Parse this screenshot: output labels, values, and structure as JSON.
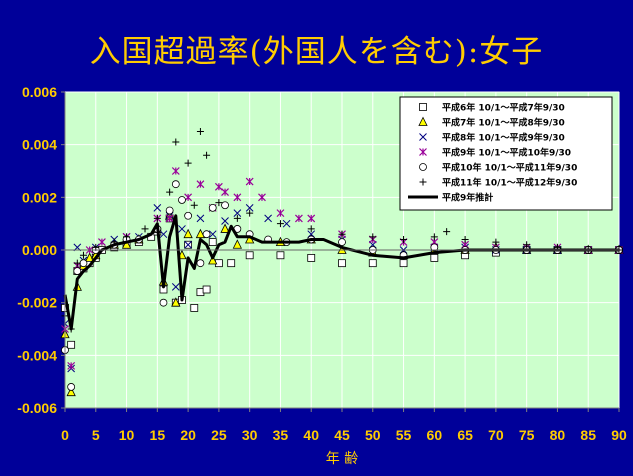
{
  "title": "入国超過率(外国人を含む):女子",
  "colors": {
    "background": "#000099",
    "plot_area": "#CCFFCC",
    "text": "#FFCC00"
  },
  "chart_data": {
    "type": "scatter",
    "xlabel": "年 齢",
    "ylabel": "",
    "xlim": [
      0,
      90
    ],
    "ylim": [
      -0.006,
      0.006
    ],
    "xticks": [
      "0",
      "5",
      "10",
      "15",
      "20",
      "25",
      "30",
      "35",
      "40",
      "45",
      "50",
      "55",
      "60",
      "65",
      "70",
      "75",
      "80",
      "85",
      "90"
    ],
    "yticks": [
      "-0.006",
      "-0.004",
      "-0.002",
      "0.000",
      "0.002",
      "0.004",
      "0.006"
    ],
    "grid": true,
    "legend_position": "top-right",
    "series": [
      {
        "name": "平成6年 10/1～平成7年9/30",
        "marker": "square",
        "x": [
          0,
          1,
          2,
          3,
          4,
          5,
          6,
          8,
          10,
          12,
          14,
          15,
          16,
          17,
          18,
          19,
          20,
          21,
          22,
          23,
          24,
          25,
          27,
          30,
          35,
          40,
          45,
          50,
          55,
          60,
          65,
          70,
          75,
          80,
          85,
          90
        ],
        "y": [
          -0.0022,
          -0.0036,
          -0.0008,
          -0.0007,
          -0.0005,
          -0.0003,
          0.0,
          0.0001,
          0.0002,
          0.0003,
          0.0005,
          0.0007,
          -0.0015,
          0.0012,
          -0.002,
          -0.0019,
          0.0002,
          -0.0022,
          -0.0016,
          -0.0015,
          0.0003,
          -0.0005,
          -0.0005,
          -0.0002,
          -0.0002,
          -0.0003,
          -0.0005,
          -0.0005,
          -0.0005,
          -0.0003,
          -0.0002,
          -0.0001,
          0.0,
          0.0,
          0.0,
          0.0
        ]
      },
      {
        "name": "平成7年 10/1～平成8年9/30",
        "marker": "triangle",
        "x": [
          0,
          1,
          2,
          3,
          4,
          5,
          8,
          10,
          12,
          15,
          16,
          17,
          18,
          19,
          20,
          22,
          24,
          26,
          28,
          30,
          35,
          40,
          45,
          50,
          55,
          60,
          65,
          70,
          75,
          80,
          85,
          90
        ],
        "y": [
          -0.0032,
          -0.0054,
          -0.0014,
          -0.0006,
          -0.0003,
          -0.0002,
          0.0002,
          0.0002,
          0.0004,
          0.0008,
          -0.0012,
          0.0013,
          -0.002,
          -0.0002,
          0.0006,
          0.0006,
          -0.0004,
          0.0008,
          0.0002,
          0.0004,
          0.0003,
          0.0004,
          0.0,
          -0.0001,
          -0.0002,
          0.0,
          0.0,
          0.0001,
          0.0,
          0.0,
          0.0,
          0.0
        ]
      },
      {
        "name": "平成8年 10/1～平成9年9/30",
        "marker": "x",
        "x": [
          0,
          1,
          2,
          3,
          5,
          8,
          10,
          12,
          15,
          16,
          17,
          18,
          19,
          20,
          22,
          24,
          26,
          28,
          30,
          33,
          36,
          40,
          45,
          50,
          55,
          60,
          65,
          70,
          75,
          80,
          85,
          90
        ],
        "y": [
          -0.0028,
          -0.0045,
          0.0001,
          -0.0004,
          0.0001,
          0.0004,
          0.0005,
          0.0005,
          0.0016,
          0.0006,
          0.0013,
          -0.0014,
          0.0008,
          0.0002,
          0.0012,
          0.0006,
          0.0011,
          0.0014,
          0.0016,
          0.0012,
          0.001,
          0.0006,
          0.0004,
          0.0002,
          0.0,
          0.0001,
          0.0001,
          0.0,
          0.0,
          0.0,
          0.0,
          0.0
        ]
      },
      {
        "name": "平成9年 10/1～平成10年9/30",
        "marker": "star",
        "x": [
          0,
          1,
          2,
          4,
          6,
          10,
          15,
          17,
          18,
          20,
          22,
          24,
          25,
          26,
          28,
          30,
          32,
          35,
          38,
          40,
          45,
          50,
          55,
          60,
          65,
          70,
          75,
          80,
          85,
          90
        ],
        "y": [
          -0.003,
          -0.0044,
          -0.0006,
          0.0,
          0.0003,
          0.0005,
          0.0012,
          0.0012,
          0.003,
          0.002,
          0.0025,
          0.0016,
          0.0024,
          0.0022,
          0.002,
          0.0026,
          0.002,
          0.0014,
          0.0012,
          0.0012,
          0.0006,
          0.0004,
          0.0003,
          0.0003,
          0.0002,
          0.0001,
          0.0001,
          0.0001,
          0.0,
          0.0
        ]
      },
      {
        "name": "平成10年 10/1～平成11年9/30",
        "marker": "circle",
        "x": [
          0,
          1,
          2,
          3,
          5,
          8,
          10,
          12,
          15,
          16,
          17,
          18,
          19,
          20,
          22,
          23,
          24,
          26,
          28,
          30,
          33,
          36,
          40,
          45,
          50,
          55,
          60,
          65,
          70,
          75,
          80,
          85,
          90
        ],
        "y": [
          -0.0038,
          -0.0052,
          -0.0008,
          -0.0005,
          0.0,
          0.0002,
          0.0004,
          0.0004,
          0.0008,
          -0.002,
          0.0015,
          0.0025,
          0.0019,
          0.0013,
          -0.0005,
          0.0006,
          0.0016,
          0.0017,
          0.0008,
          0.0006,
          0.0004,
          0.0003,
          0.0004,
          0.0003,
          0.0,
          -0.0002,
          0.0001,
          0.0,
          0.0,
          0.0,
          0.0,
          0.0,
          0.0
        ]
      },
      {
        "name": "平成11年 10/1～平成12年9/30",
        "marker": "plus",
        "x": [
          0,
          1,
          2,
          3,
          5,
          8,
          10,
          13,
          15,
          17,
          18,
          20,
          21,
          22,
          23,
          25,
          28,
          30,
          35,
          40,
          45,
          50,
          55,
          60,
          62,
          65,
          70,
          75,
          80,
          85,
          90
        ],
        "y": [
          -0.0025,
          -0.003,
          -0.0005,
          -0.0002,
          0.0001,
          0.0003,
          0.0005,
          0.0008,
          0.0012,
          0.0022,
          0.0041,
          0.0033,
          0.0017,
          0.0045,
          0.0036,
          0.0018,
          0.0012,
          0.0014,
          0.001,
          0.0008,
          0.0006,
          0.0005,
          0.0004,
          0.0005,
          0.0007,
          0.0004,
          0.0003,
          0.0002,
          0.0001,
          0.0,
          0.0
        ]
      },
      {
        "name": "平成9年推計",
        "marker": "line",
        "x": [
          0,
          1,
          2,
          3,
          4,
          5,
          6,
          8,
          10,
          12,
          14,
          15,
          16,
          17,
          18,
          19,
          20,
          21,
          22,
          23,
          24,
          25,
          26,
          27,
          28,
          30,
          32,
          35,
          38,
          40,
          42,
          45,
          50,
          55,
          60,
          65,
          70,
          75,
          80,
          85,
          90
        ],
        "y": [
          -0.0017,
          -0.003,
          -0.0011,
          -0.0008,
          -0.0006,
          -0.0003,
          0.0,
          0.0002,
          0.0003,
          0.0004,
          0.0006,
          0.001,
          -0.0014,
          0.0005,
          0.0013,
          -0.0019,
          -0.0003,
          -0.0007,
          0.0004,
          0.0002,
          -0.0003,
          0.0002,
          0.0003,
          0.0009,
          0.0005,
          0.0005,
          0.0003,
          0.0003,
          0.0003,
          0.0004,
          0.0004,
          0.0001,
          -0.0002,
          -0.0003,
          -0.0001,
          0.0,
          0.0,
          0.0,
          0.0,
          0.0,
          0.0
        ]
      }
    ]
  }
}
